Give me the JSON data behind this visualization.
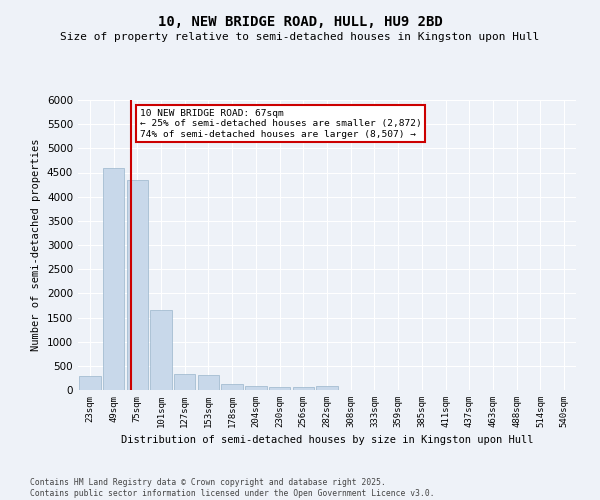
{
  "title": "10, NEW BRIDGE ROAD, HULL, HU9 2BD",
  "subtitle": "Size of property relative to semi-detached houses in Kingston upon Hull",
  "xlabel": "Distribution of semi-detached houses by size in Kingston upon Hull",
  "ylabel": "Number of semi-detached properties",
  "footer_line1": "Contains HM Land Registry data © Crown copyright and database right 2025.",
  "footer_line2": "Contains public sector information licensed under the Open Government Licence v3.0.",
  "annotation_title": "10 NEW BRIDGE ROAD: 67sqm",
  "annotation_line1": "← 25% of semi-detached houses are smaller (2,872)",
  "annotation_line2": "74% of semi-detached houses are larger (8,507) →",
  "categories": [
    "23sqm",
    "49sqm",
    "75sqm",
    "101sqm",
    "127sqm",
    "153sqm",
    "178sqm",
    "204sqm",
    "230sqm",
    "256sqm",
    "282sqm",
    "308sqm",
    "333sqm",
    "359sqm",
    "385sqm",
    "411sqm",
    "437sqm",
    "463sqm",
    "488sqm",
    "514sqm",
    "540sqm"
  ],
  "values": [
    300,
    4600,
    4350,
    1650,
    330,
    310,
    125,
    90,
    60,
    55,
    80,
    0,
    0,
    0,
    0,
    0,
    0,
    0,
    0,
    0,
    0
  ],
  "bar_color": "#c8d8ea",
  "bar_edge_color": "#9ab5cc",
  "red_line_color": "#cc0000",
  "background_color": "#eef2f8",
  "annotation_box_color": "#ffffff",
  "annotation_box_edge": "#cc0000",
  "grid_color": "#ffffff",
  "ylim": [
    0,
    6000
  ],
  "yticks": [
    0,
    500,
    1000,
    1500,
    2000,
    2500,
    3000,
    3500,
    4000,
    4500,
    5000,
    5500,
    6000
  ],
  "red_line_x": 1.72
}
